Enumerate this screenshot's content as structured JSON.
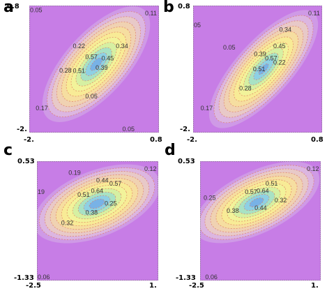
{
  "chart_data": [
    {
      "panel_letter": "a",
      "type": "contour",
      "xlim": [
        -2.0,
        0.8
      ],
      "ylim": [
        -2.0,
        0.8
      ],
      "x_tick_labels": [
        "-2.",
        "0.8"
      ],
      "y_tick_labels": [
        "0.8",
        "-2."
      ],
      "contour_levels": [
        0.05,
        0.11,
        0.17,
        0.22,
        0.28,
        0.34,
        0.39,
        0.45,
        0.51,
        0.57
      ],
      "contour_labels": [
        {
          "text": "0.05",
          "x": -2.0,
          "y": 0.7
        },
        {
          "text": "0.11",
          "x": 0.58,
          "y": 0.63
        },
        {
          "text": "0.22",
          "x": -1.06,
          "y": -0.09
        },
        {
          "text": "0.34",
          "x": -0.13,
          "y": -0.09
        },
        {
          "text": "0.57",
          "x": -0.79,
          "y": -0.33
        },
        {
          "text": "0.45",
          "x": -0.44,
          "y": -0.36
        },
        {
          "text": "0.39",
          "x": -0.57,
          "y": -0.57
        },
        {
          "text": "0.28",
          "x": -1.35,
          "y": -0.63
        },
        {
          "text": "0.51",
          "x": -1.06,
          "y": -0.64
        },
        {
          "text": "0.05",
          "x": -0.79,
          "y": -1.2
        },
        {
          "text": "0.17",
          "x": -1.86,
          "y": -1.46
        },
        {
          "text": "0.05",
          "x": 0.01,
          "y": -2.0
        }
      ]
    },
    {
      "panel_letter": "b",
      "type": "contour",
      "xlim": [
        -2.0,
        0.8
      ],
      "ylim": [
        -2.0,
        0.8
      ],
      "x_tick_labels": [
        "-2.",
        "0.8"
      ],
      "y_tick_labels": [
        "0.8",
        "-2."
      ],
      "contour_levels": [
        0.05,
        0.11,
        0.17,
        0.22,
        0.28,
        0.34,
        0.39,
        0.45,
        0.51,
        0.57
      ],
      "contour_labels": [
        {
          "text": "05",
          "x": -2.0,
          "y": 0.37
        },
        {
          "text": "0.11",
          "x": 0.56,
          "y": 0.63
        },
        {
          "text": "0.34",
          "x": -0.13,
          "y": 0.27
        },
        {
          "text": "0.05",
          "x": -1.35,
          "y": -0.12
        },
        {
          "text": "0.45",
          "x": -0.26,
          "y": -0.09
        },
        {
          "text": "0.39",
          "x": -0.68,
          "y": -0.27
        },
        {
          "text": "0.57",
          "x": -0.44,
          "y": -0.36
        },
        {
          "text": "0.22",
          "x": -0.26,
          "y": -0.45
        },
        {
          "text": "0.51",
          "x": -0.7,
          "y": -0.6
        },
        {
          "text": "0.28",
          "x": -1.0,
          "y": -1.02
        },
        {
          "text": "0.17",
          "x": -1.84,
          "y": -1.46
        }
      ]
    },
    {
      "panel_letter": "c",
      "type": "contour",
      "xlim": [
        -2.5,
        1.0
      ],
      "ylim": [
        -1.33,
        0.53
      ],
      "x_tick_labels": [
        "-2.5",
        "1."
      ],
      "y_tick_labels": [
        "0.53",
        "-1.33"
      ],
      "contour_levels": [
        0.06,
        0.12,
        0.19,
        0.25,
        0.32,
        0.38,
        0.44,
        0.51,
        0.57,
        0.64
      ],
      "contour_labels": [
        {
          "text": "0.12",
          "x": 0.73,
          "y": 0.41
        },
        {
          "text": "0.19",
          "x": -1.59,
          "y": 0.35
        },
        {
          "text": "0.44",
          "x": -0.79,
          "y": 0.23
        },
        {
          "text": "0.57",
          "x": -0.41,
          "y": 0.18
        },
        {
          "text": "19",
          "x": -2.5,
          "y": 0.05
        },
        {
          "text": "0.64",
          "x": -0.94,
          "y": 0.07
        },
        {
          "text": "0.51",
          "x": -1.33,
          "y": 0.01
        },
        {
          "text": "0.25",
          "x": -0.55,
          "y": -0.13
        },
        {
          "text": "0.38",
          "x": -1.1,
          "y": -0.27
        },
        {
          "text": "0.32",
          "x": -1.8,
          "y": -0.43
        },
        {
          "text": "0.06",
          "x": -2.5,
          "y": -1.3
        }
      ]
    },
    {
      "panel_letter": "d",
      "type": "contour",
      "xlim": [
        -2.5,
        1.0
      ],
      "ylim": [
        -1.33,
        0.53
      ],
      "x_tick_labels": [
        "-2.5",
        "1."
      ],
      "y_tick_labels": [
        "0.53",
        "-1.33"
      ],
      "contour_levels": [
        0.06,
        0.12,
        0.19,
        0.25,
        0.32,
        0.38,
        0.44,
        0.51,
        0.57,
        0.64
      ],
      "contour_labels": [
        {
          "text": "0.12",
          "x": 0.78,
          "y": 0.41
        },
        {
          "text": "0.51",
          "x": -0.6,
          "y": 0.18
        },
        {
          "text": "0.57",
          "x": -1.2,
          "y": 0.05
        },
        {
          "text": "0.64",
          "x": -0.86,
          "y": 0.07
        },
        {
          "text": "0.25",
          "x": -2.4,
          "y": -0.04
        },
        {
          "text": "0.32",
          "x": -0.34,
          "y": -0.08
        },
        {
          "text": "0.44",
          "x": -0.92,
          "y": -0.2
        },
        {
          "text": "0.38",
          "x": -1.73,
          "y": -0.24
        },
        {
          "text": "0.06",
          "x": -2.35,
          "y": -1.33
        }
      ]
    }
  ]
}
